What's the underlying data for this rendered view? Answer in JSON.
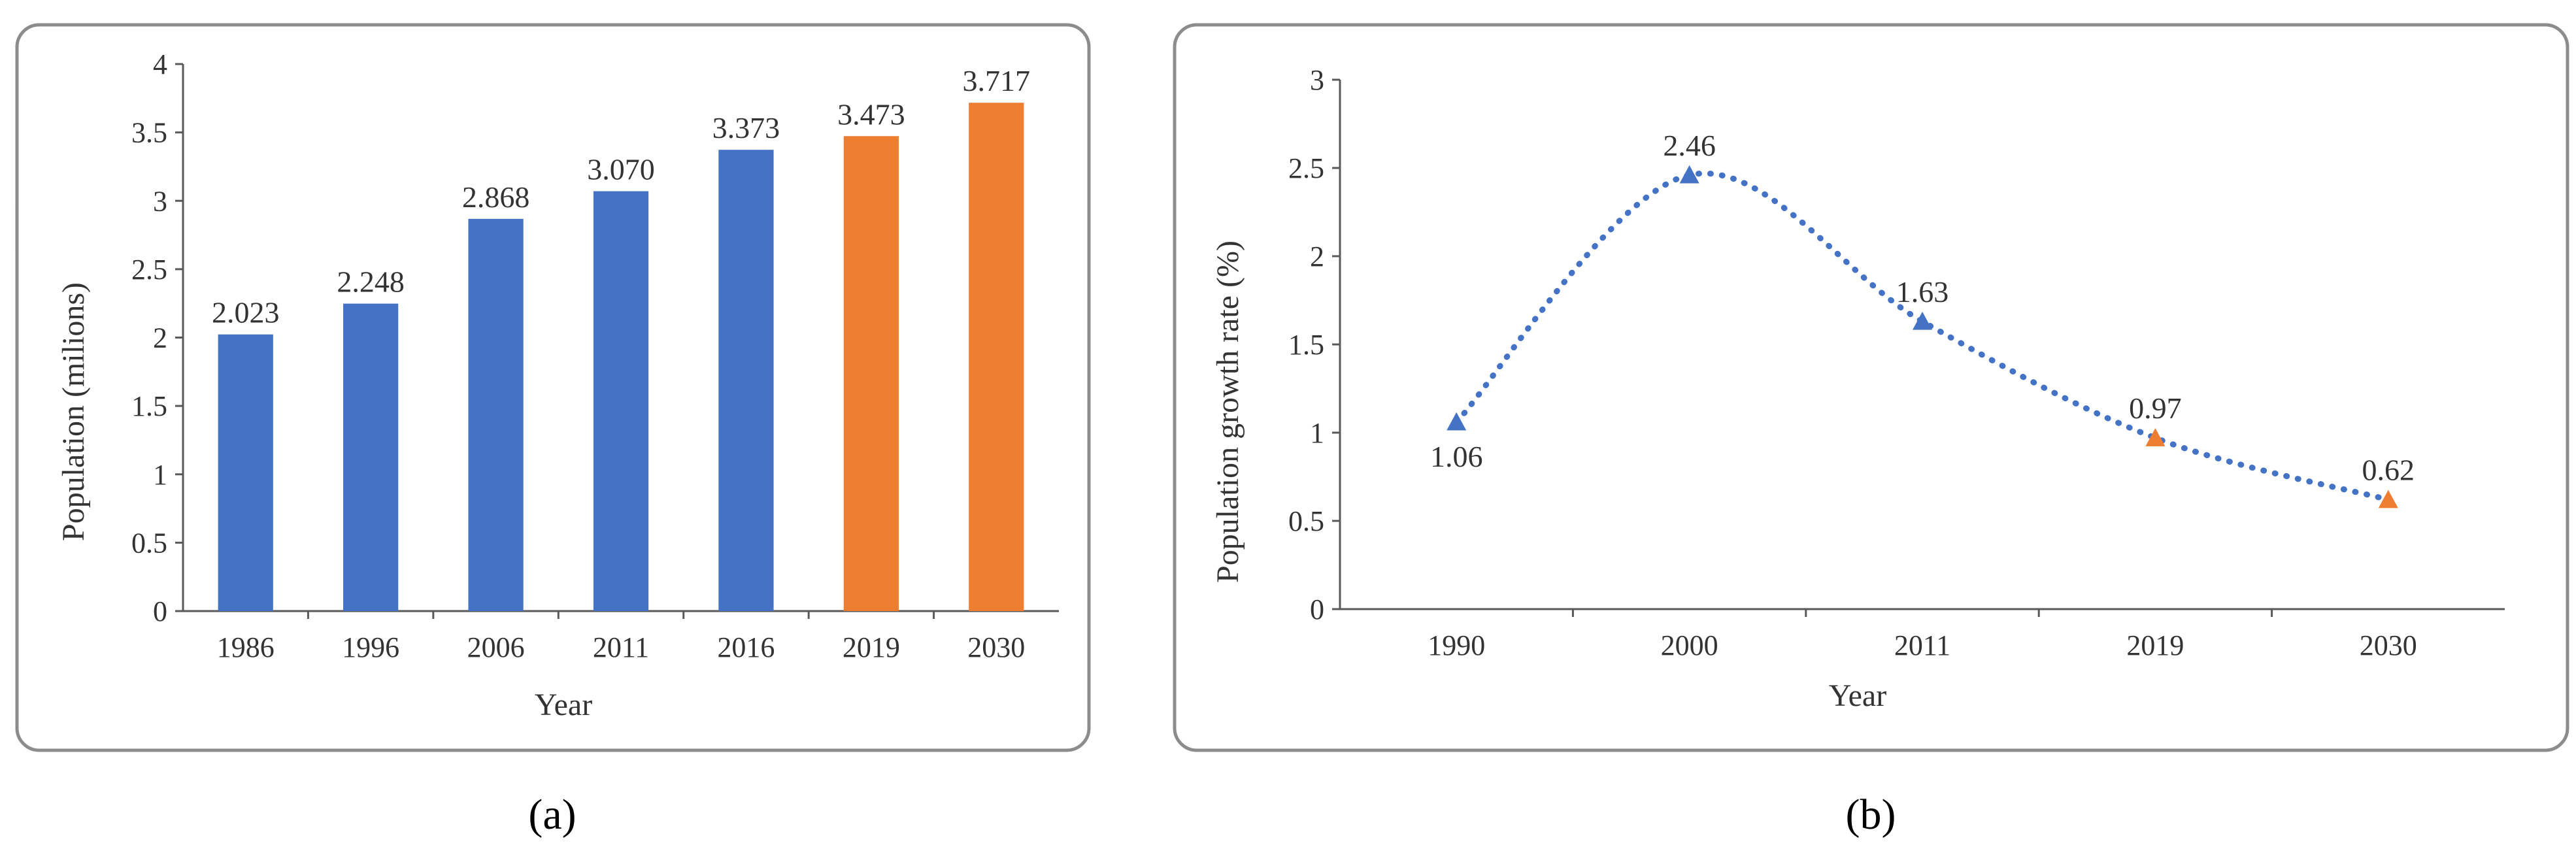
{
  "chart_data": [
    {
      "panel": "a",
      "type": "bar",
      "title": "",
      "xlabel": "Year",
      "ylabel": "Population (milions)",
      "ylim": [
        0,
        4
      ],
      "yticks": [
        "0",
        "0.5",
        "1",
        "1.5",
        "2",
        "2.5",
        "3",
        "3.5",
        "4"
      ],
      "grid": false,
      "categories": [
        "1986",
        "1996",
        "2006",
        "2011",
        "2016",
        "2019",
        "2030"
      ],
      "values": [
        2.023,
        2.248,
        2.868,
        3.07,
        3.373,
        3.473,
        3.717
      ],
      "value_labels": [
        "2.023",
        "2.248",
        "2.868",
        "3.070",
        "3.373",
        "3.473",
        "3.717"
      ],
      "bar_colors": [
        "#4472c4",
        "#4472c4",
        "#4472c4",
        "#4472c4",
        "#4472c4",
        "#ed7d31",
        "#ed7d31"
      ]
    },
    {
      "panel": "b",
      "type": "line",
      "title": "",
      "xlabel": "Year",
      "ylabel": "Population growth rate (%)",
      "ylim": [
        0,
        3
      ],
      "yticks": [
        "0",
        "0.5",
        "1",
        "1.5",
        "2",
        "2.5",
        "3"
      ],
      "grid": false,
      "line_style": "dotted",
      "line_color": "#4472c4",
      "categories": [
        "1990",
        "2000",
        "2011",
        "2019",
        "2030"
      ],
      "values": [
        1.06,
        2.46,
        1.63,
        0.97,
        0.62
      ],
      "value_labels": [
        "1.06",
        "2.46",
        "1.63",
        "0.97",
        "0.62"
      ],
      "label_positions": [
        "below",
        "above",
        "above",
        "above",
        "above"
      ],
      "marker": "triangle",
      "marker_colors": [
        "#4472c4",
        "#4472c4",
        "#4472c4",
        "#ed7d31",
        "#ed7d31"
      ]
    }
  ],
  "captions": {
    "a": "(a)",
    "b": "(b)"
  },
  "colors": {
    "frame": "#8c8c8c",
    "axis": "#595959"
  }
}
